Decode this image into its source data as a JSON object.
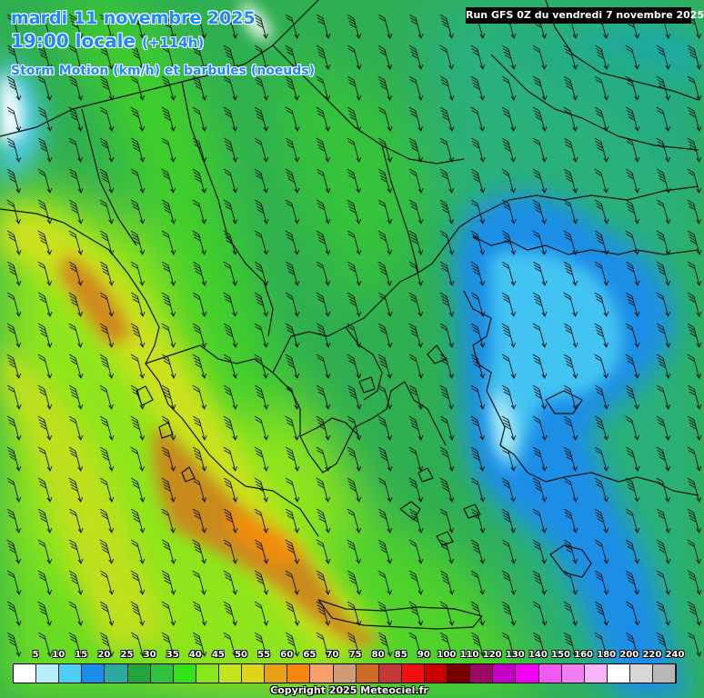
{
  "header": {
    "date": "mardi 11 novembre 2025",
    "time": "19:00 locale",
    "offset": "(+114h)",
    "parameter": "Storm Motion (km/h) et barbules (noeuds)",
    "run": "Run GFS 0Z du vendredi 7 novembre 2025"
  },
  "legend": {
    "ticks": [
      "5",
      "10",
      "15",
      "20",
      "25",
      "30",
      "35",
      "40",
      "45",
      "50",
      "55",
      "60",
      "65",
      "70",
      "75",
      "80",
      "85",
      "90",
      "100",
      "110",
      "120",
      "130",
      "140",
      "150",
      "160",
      "180",
      "200",
      "220",
      "240"
    ],
    "colors": [
      "#ffffff",
      "#b5eef8",
      "#4ccdf2",
      "#1b8de8",
      "#2ba8a0",
      "#22a63c",
      "#31c03f",
      "#33e219",
      "#89e61c",
      "#c3e51c",
      "#ddd51a",
      "#e8a116",
      "#f7860f",
      "#f7a06a",
      "#d09b72",
      "#cf6a27",
      "#c23838",
      "#f01010",
      "#c80000",
      "#7a0000",
      "#9a0a64",
      "#c400c4",
      "#f200f2",
      "#f258f2",
      "#f27ef2",
      "#f7b4f7",
      "#ffffff",
      "#d8d8d8",
      "#b8b8b8"
    ]
  },
  "copyright": "Copyright 2025 Meteociel.fr"
}
